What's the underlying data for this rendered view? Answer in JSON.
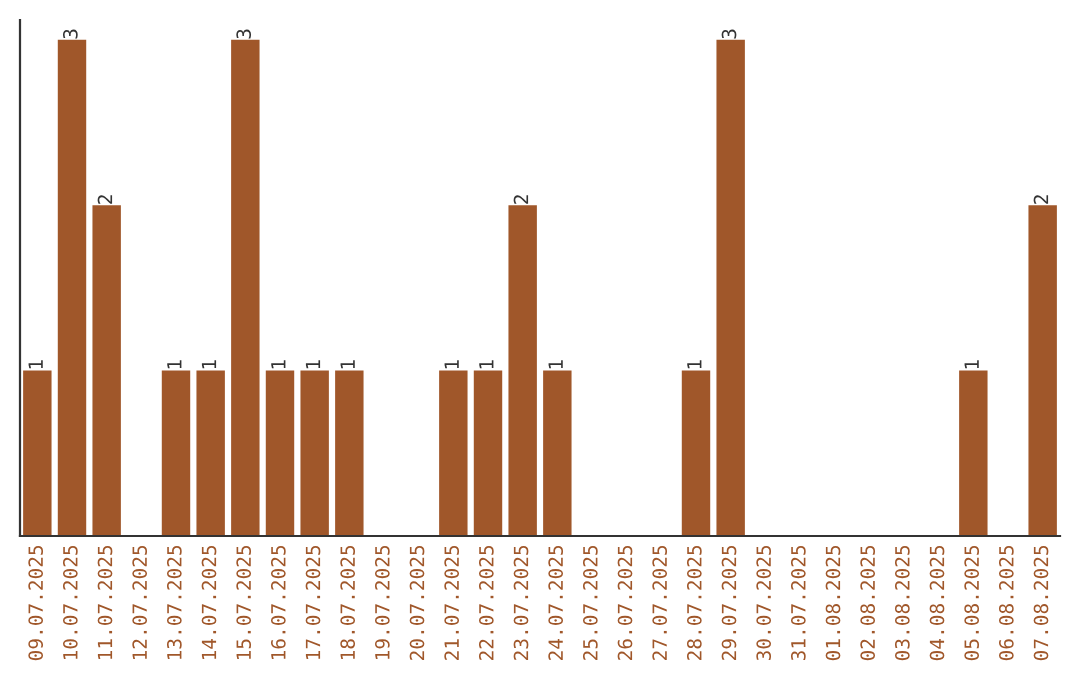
{
  "chart_data": {
    "type": "bar",
    "categories": [
      "09.07.2025",
      "10.07.2025",
      "11.07.2025",
      "12.07.2025",
      "13.07.2025",
      "14.07.2025",
      "15.07.2025",
      "16.07.2025",
      "17.07.2025",
      "18.07.2025",
      "19.07.2025",
      "20.07.2025",
      "21.07.2025",
      "22.07.2025",
      "23.07.2025",
      "24.07.2025",
      "25.07.2025",
      "26.07.2025",
      "27.07.2025",
      "28.07.2025",
      "29.07.2025",
      "30.07.2025",
      "31.07.2025",
      "01.08.2025",
      "02.08.2025",
      "03.08.2025",
      "04.08.2025",
      "05.08.2025",
      "06.08.2025",
      "07.08.2025"
    ],
    "values": [
      1,
      3,
      2,
      0,
      1,
      1,
      3,
      1,
      1,
      1,
      0,
      0,
      1,
      1,
      2,
      1,
      0,
      0,
      0,
      1,
      3,
      0,
      0,
      0,
      0,
      0,
      0,
      1,
      0,
      2
    ],
    "value_labels": [
      "1",
      "3",
      "2",
      null,
      "1",
      "1",
      "3",
      "1",
      "1",
      "1",
      null,
      null,
      "1",
      "1",
      "2",
      "1",
      null,
      null,
      null,
      "1",
      "3",
      null,
      null,
      null,
      null,
      null,
      null,
      "1",
      null,
      "2"
    ],
    "color": "#a0572a",
    "grid": false,
    "legend": false
  }
}
